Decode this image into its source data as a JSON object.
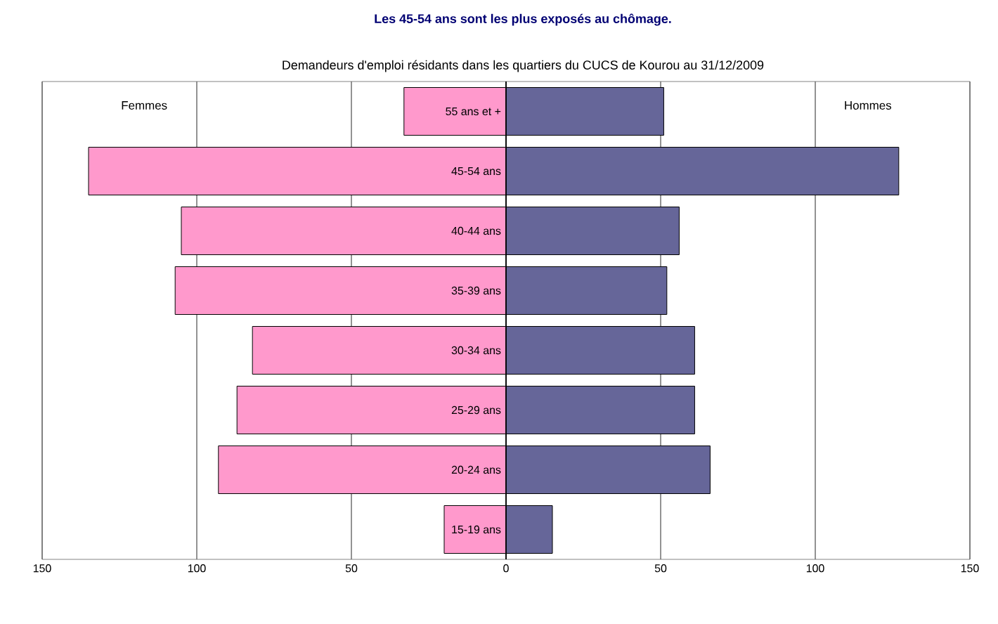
{
  "chart_data": [
    {
      "type": "bar",
      "orientation": "horizontal",
      "title": "Les 45-54 ans sont les plus exposés au chômage.",
      "subtitle": "Demandeurs d'emploi résidants dans les quartiers du CUCS de Kourou au 31/12/2009",
      "categories": [
        "55 ans et +",
        "45-54 ans",
        "40-44 ans",
        "35-39 ans",
        "30-34 ans",
        "25-29 ans",
        "20-24 ans",
        "15-19 ans"
      ],
      "series": [
        {
          "name": "Femmes",
          "color": "#ff99cc",
          "values": [
            33,
            135,
            105,
            107,
            82,
            87,
            93,
            20
          ]
        }
      ],
      "xlim": [
        150,
        0
      ],
      "xticks": [
        150,
        100,
        50,
        0
      ],
      "grid": "x",
      "legend": false
    },
    {
      "type": "bar",
      "orientation": "horizontal",
      "categories": [
        null,
        null,
        null,
        null,
        null,
        null,
        null,
        null
      ],
      "series": [
        {
          "name": "Hommes",
          "color": "#666699",
          "values": [
            51,
            127,
            56,
            52,
            61,
            61,
            66,
            15
          ]
        }
      ],
      "xlim": [
        0,
        150
      ],
      "xticks": [
        {
          "value": 0,
          "label": null
        },
        50,
        100,
        150
      ],
      "grid": "x",
      "legend": false,
      "tick_labels": "x"
    }
  ]
}
